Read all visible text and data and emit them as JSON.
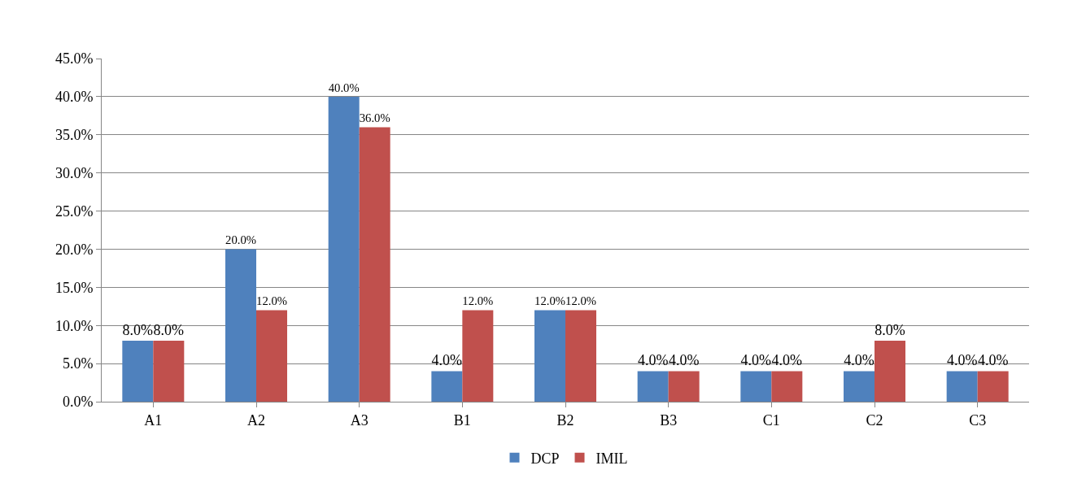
{
  "chart_data": {
    "type": "bar",
    "categories": [
      "A1",
      "A2",
      "A3",
      "B1",
      "B2",
      "B3",
      "C1",
      "C2",
      "C3"
    ],
    "series": [
      {
        "name": "DCP",
        "color": "#4f81bd",
        "values": [
          8.0,
          20.0,
          40.0,
          4.0,
          12.0,
          4.0,
          4.0,
          4.0,
          4.0
        ],
        "value_labels": [
          "8.0%",
          "20.0%",
          "40.0%",
          "4.0%",
          "12.0%",
          "4.0%",
          "4.0%",
          "4.0%",
          "4.0%"
        ]
      },
      {
        "name": "IMIL",
        "color": "#c0504d",
        "values": [
          8.0,
          12.0,
          36.0,
          12.0,
          12.0,
          4.0,
          4.0,
          8.0,
          4.0
        ],
        "value_labels": [
          "8.0%",
          "12.0%",
          "36.0%",
          "12.0%",
          "12.0%",
          "4.0%",
          "4.0%",
          "8.0%",
          "4.0%"
        ]
      }
    ],
    "ylim": [
      0,
      45
    ],
    "yticks": [
      {
        "value": 0,
        "label": "0.0%"
      },
      {
        "value": 5,
        "label": "5.0%"
      },
      {
        "value": 10,
        "label": "10.0%"
      },
      {
        "value": 15,
        "label": "15.0%"
      },
      {
        "value": 20,
        "label": "20.0%"
      },
      {
        "value": 25,
        "label": "25.0%"
      },
      {
        "value": 30,
        "label": "30.0%"
      },
      {
        "value": 35,
        "label": "35.0%"
      },
      {
        "value": 40,
        "label": "40.0%"
      },
      {
        "value": 45,
        "label": "45.0%"
      }
    ],
    "grid": "y",
    "legend": "bottom"
  }
}
